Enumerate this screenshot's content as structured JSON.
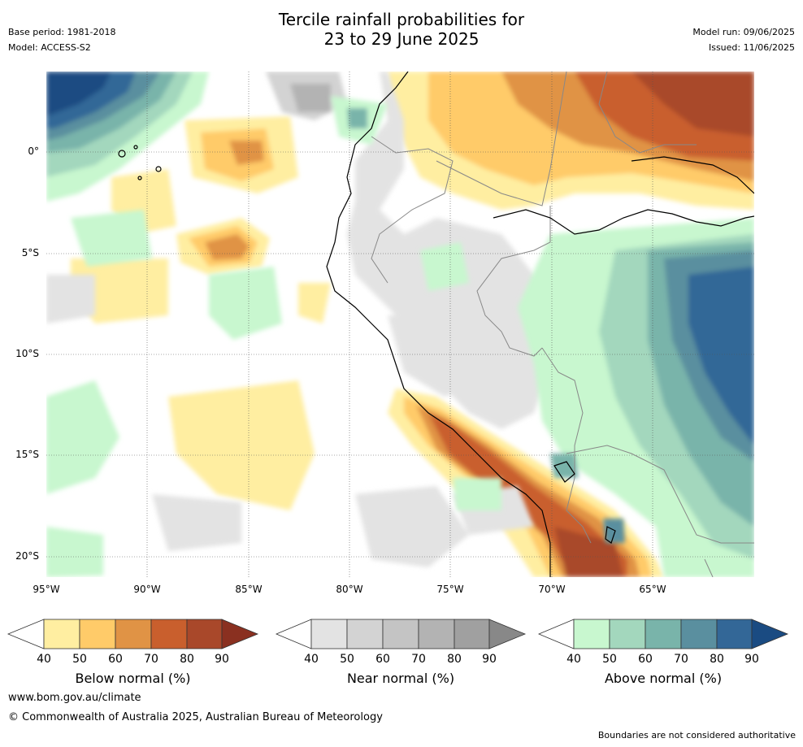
{
  "header": {
    "title_line1": "Tercile rainfall probabilities for",
    "title_line2": "23 to 29 June 2025",
    "base_period": "Base period: 1981-2018",
    "model": "Model: ACCESS-S2",
    "model_run": "Model run: 09/06/2025",
    "issued": "Issued: 11/06/2025"
  },
  "map": {
    "lat_labels": [
      "0°",
      "5°S",
      "10°S",
      "15°S",
      "20°S"
    ],
    "lon_labels": [
      "95°W",
      "90°W",
      "85°W",
      "80°W",
      "75°W",
      "70°W",
      "65°W"
    ],
    "regions": [
      {
        "category": "above",
        "level": 90,
        "desc": "far north-west corner ocean"
      },
      {
        "category": "below",
        "level": 80,
        "desc": "north-east Amazon"
      },
      {
        "category": "below",
        "level": 80,
        "desc": "southern coastal Peru / Andes strip"
      },
      {
        "category": "above",
        "level": 80,
        "desc": "western Brazil interior"
      },
      {
        "category": "near",
        "level": 50,
        "desc": "Peru lowlands / Ecuador"
      }
    ]
  },
  "colorbars": [
    {
      "label": "Below normal (%)",
      "ticks": [
        "40",
        "50",
        "60",
        "70",
        "80",
        "90"
      ],
      "colors": [
        "#ffeea1",
        "#ffcb69",
        "#e09345",
        "#c95f2d",
        "#a9482a",
        "#8a3020"
      ]
    },
    {
      "label": "Near normal (%)",
      "ticks": [
        "40",
        "50",
        "60",
        "70",
        "80",
        "90"
      ],
      "colors": [
        "#e3e3e3",
        "#d3d3d3",
        "#c4c4c4",
        "#b3b3b3",
        "#a0a0a0",
        "#888888"
      ]
    },
    {
      "label": "Above normal (%)",
      "ticks": [
        "40",
        "50",
        "60",
        "70",
        "80",
        "90"
      ],
      "colors": [
        "#c8f7cf",
        "#a3d7bd",
        "#79b4aa",
        "#5a8f9f",
        "#336797",
        "#1a4b82"
      ]
    }
  ],
  "footer": {
    "url": "www.bom.gov.au/climate",
    "copyright": "© Commonwealth of Australia 2025, Australian Bureau of Meteorology",
    "disclaimer": "Boundaries are not considered authoritative"
  }
}
